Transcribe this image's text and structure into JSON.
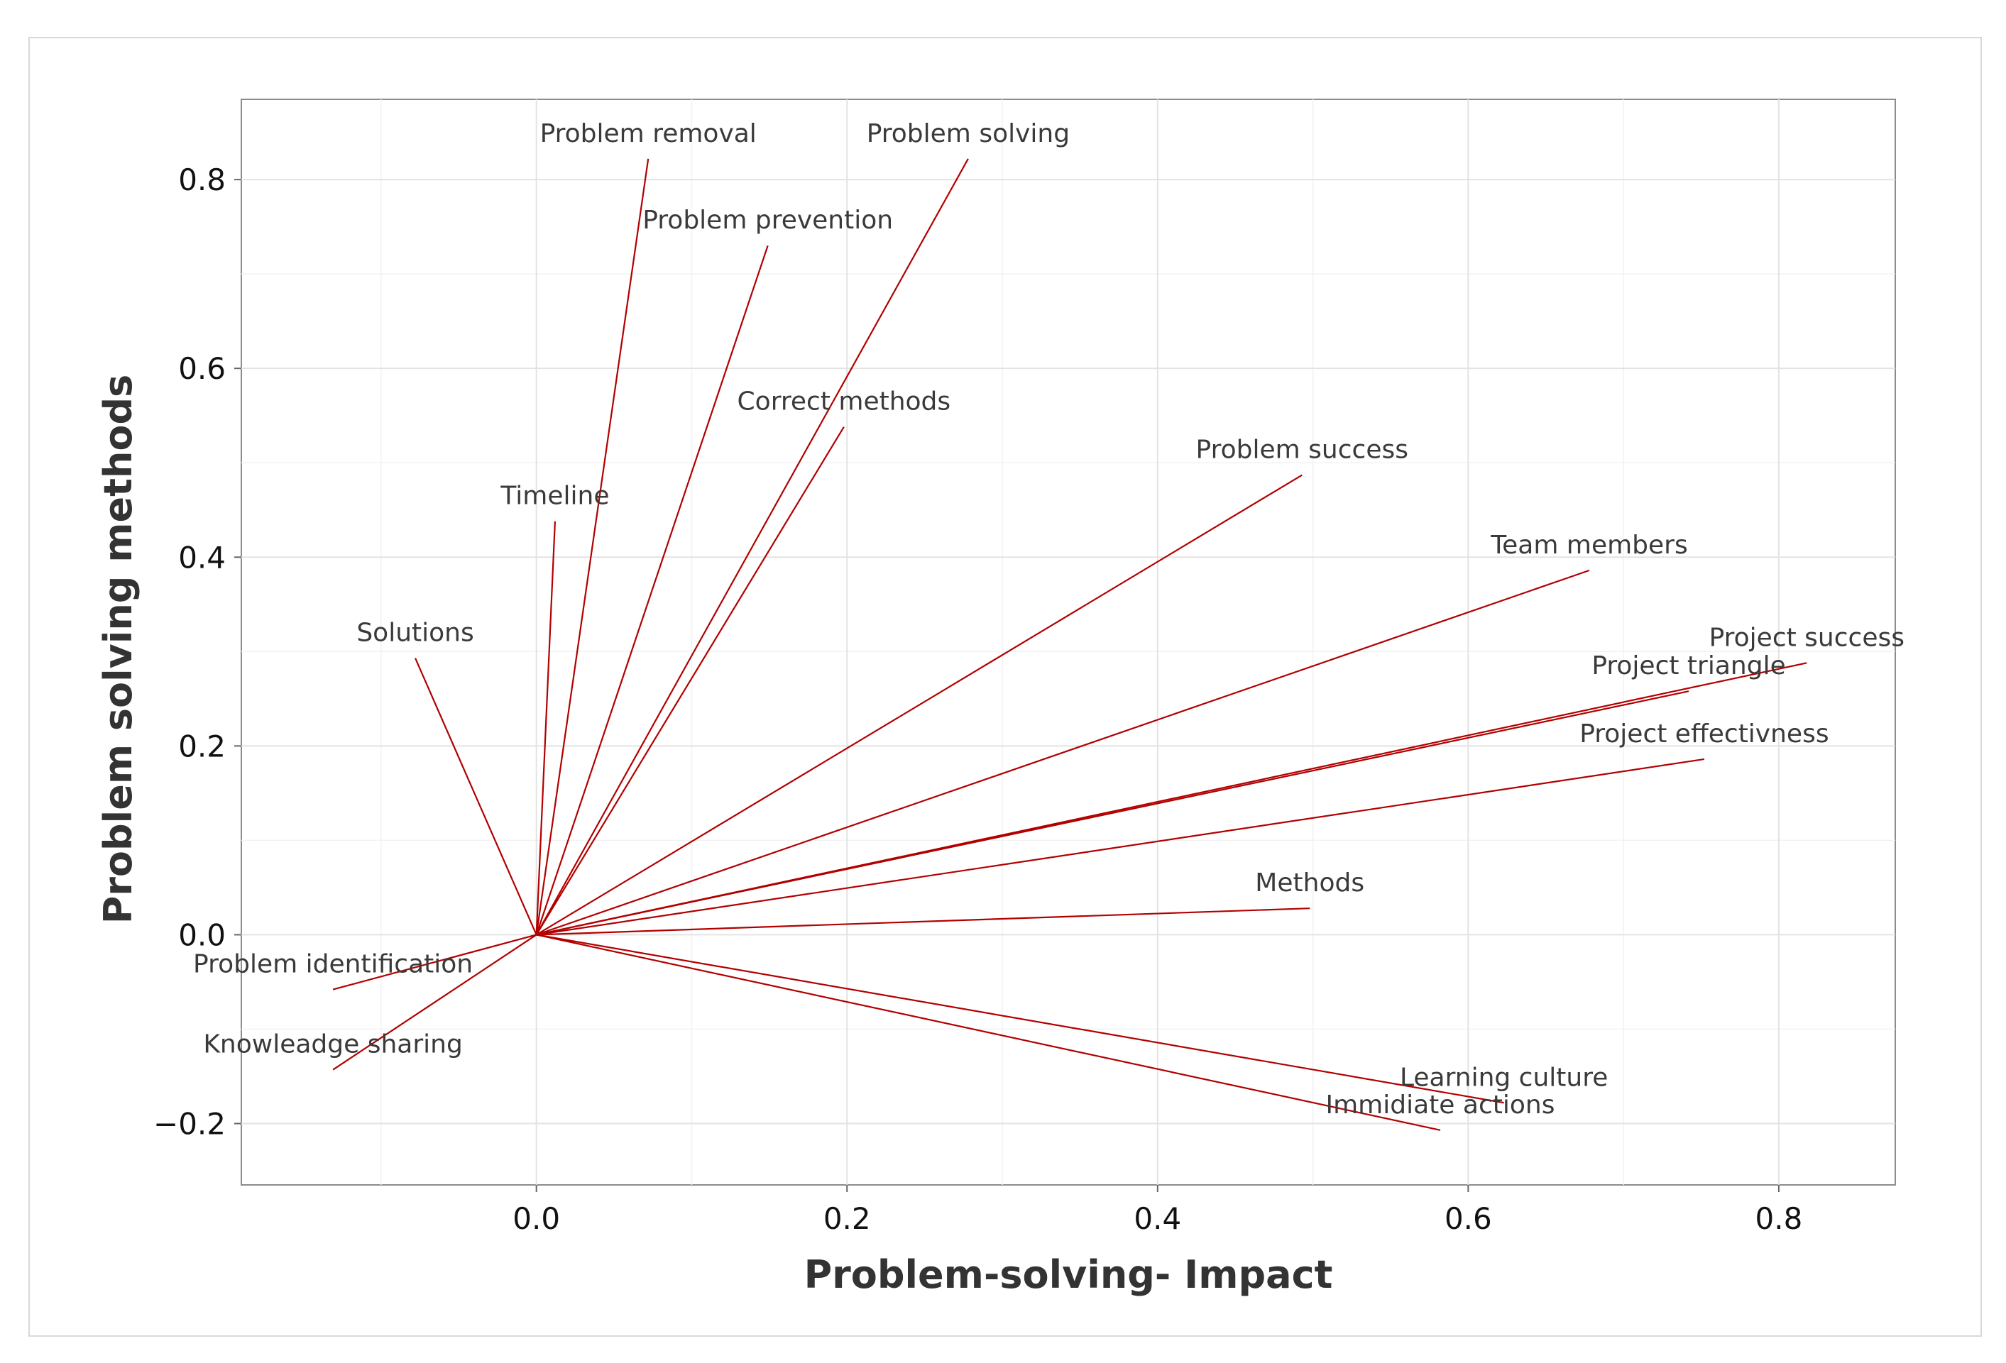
{
  "chart_data": {
    "type": "biplot",
    "title": "",
    "xlabel": "Problem-solving- Impact",
    "ylabel": "Problem solving methods",
    "xlim": [
      -0.19,
      0.875
    ],
    "ylim": [
      -0.265,
      0.885
    ],
    "x_ticks": [
      0.0,
      0.2,
      0.4,
      0.6,
      0.8
    ],
    "y_ticks": [
      -0.2,
      0.0,
      0.2,
      0.4,
      0.6,
      0.8
    ],
    "x_tick_labels": [
      "0.0",
      "0.2",
      "0.4",
      "0.6",
      "0.8"
    ],
    "y_tick_labels": [
      "−0.2",
      "0.0",
      "0.2",
      "0.4",
      "0.6",
      "0.8"
    ],
    "grid": true,
    "line_color": "#b20000",
    "vectors": [
      {
        "label": "Problem removal",
        "x": 0.072,
        "y": 0.822
      },
      {
        "label": "Problem solving",
        "x": 0.278,
        "y": 0.822
      },
      {
        "label": "Problem prevention",
        "x": 0.149,
        "y": 0.73
      },
      {
        "label": "Correct methods",
        "x": 0.198,
        "y": 0.538
      },
      {
        "label": "Problem success",
        "x": 0.493,
        "y": 0.487
      },
      {
        "label": "Timeline",
        "x": 0.012,
        "y": 0.438
      },
      {
        "label": "Team members",
        "x": 0.678,
        "y": 0.386
      },
      {
        "label": "Solutions",
        "x": -0.078,
        "y": 0.293
      },
      {
        "label": "Project success",
        "x": 0.818,
        "y": 0.288
      },
      {
        "label": "Project triangle",
        "x": 0.742,
        "y": 0.258
      },
      {
        "label": "Project effectivness",
        "x": 0.752,
        "y": 0.186
      },
      {
        "label": "Methods",
        "x": 0.498,
        "y": 0.028
      },
      {
        "label": "Problem identification",
        "x": -0.131,
        "y": -0.058
      },
      {
        "label": "Knowleadge sharing",
        "x": -0.131,
        "y": -0.143
      },
      {
        "label": "Learning culture",
        "x": 0.623,
        "y": -0.178
      },
      {
        "label": "Immidiate actions",
        "x": 0.582,
        "y": -0.207
      }
    ]
  }
}
